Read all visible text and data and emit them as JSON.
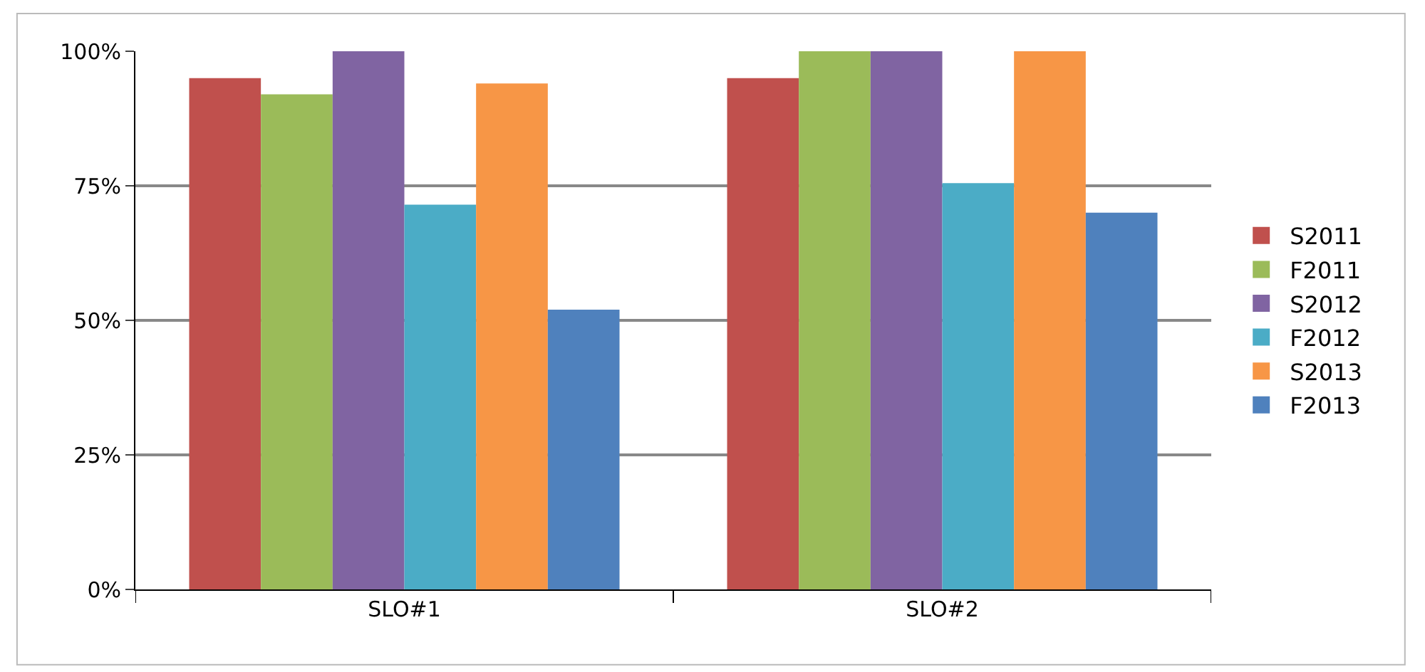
{
  "chart_data": {
    "type": "bar",
    "categories": [
      "SLO#1",
      "SLO#2"
    ],
    "series": [
      {
        "name": "S2011",
        "color": "#c0504d",
        "values": [
          95,
          95
        ]
      },
      {
        "name": "F2011",
        "color": "#9bbb59",
        "values": [
          92,
          100
        ]
      },
      {
        "name": "S2012",
        "color": "#8064a2",
        "values": [
          100,
          100
        ]
      },
      {
        "name": "F2012",
        "color": "#4bacc6",
        "values": [
          71.5,
          75.5
        ]
      },
      {
        "name": "S2013",
        "color": "#f79646",
        "values": [
          94,
          100
        ]
      },
      {
        "name": "F2013",
        "color": "#4f81bd",
        "values": [
          52,
          70
        ]
      }
    ],
    "ylim": [
      0,
      100
    ],
    "yticks": [
      {
        "value": 0,
        "label": "0%"
      },
      {
        "value": 25,
        "label": "25%"
      },
      {
        "value": 50,
        "label": "50%"
      },
      {
        "value": 75,
        "label": "75%"
      },
      {
        "value": 100,
        "label": "100%"
      }
    ],
    "grid": "y",
    "legend": "right"
  }
}
